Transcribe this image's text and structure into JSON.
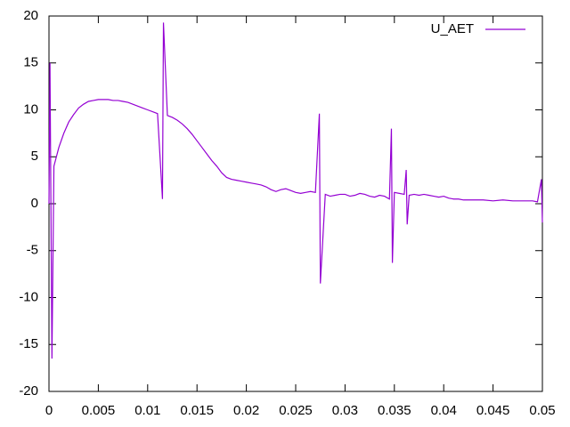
{
  "chart_data": {
    "type": "line",
    "x": [
      0,
      0.0001,
      0.0003,
      0.0005,
      0.001,
      0.0015,
      0.002,
      0.0025,
      0.003,
      0.0035,
      0.004,
      0.0045,
      0.005,
      0.0055,
      0.006,
      0.0065,
      0.007,
      0.0075,
      0.008,
      0.0085,
      0.009,
      0.0095,
      0.01,
      0.0105,
      0.011,
      0.0115,
      0.0116,
      0.012,
      0.0125,
      0.013,
      0.0135,
      0.014,
      0.0145,
      0.015,
      0.0155,
      0.016,
      0.0165,
      0.017,
      0.0175,
      0.018,
      0.0185,
      0.019,
      0.0195,
      0.02,
      0.0205,
      0.021,
      0.0215,
      0.022,
      0.0225,
      0.023,
      0.0235,
      0.024,
      0.0245,
      0.025,
      0.0255,
      0.026,
      0.0265,
      0.027,
      0.0274,
      0.0275,
      0.028,
      0.0285,
      0.029,
      0.0295,
      0.03,
      0.0305,
      0.031,
      0.0315,
      0.032,
      0.0325,
      0.033,
      0.0335,
      0.034,
      0.0345,
      0.0347,
      0.0348,
      0.035,
      0.0355,
      0.036,
      0.0362,
      0.0363,
      0.0365,
      0.037,
      0.0375,
      0.038,
      0.0385,
      0.039,
      0.0395,
      0.04,
      0.0405,
      0.041,
      0.0415,
      0.042,
      0.043,
      0.044,
      0.045,
      0.046,
      0.047,
      0.048,
      0.049,
      0.0495,
      0.0499,
      0.05
    ],
    "series": [
      {
        "name": "U_AET",
        "color": "#9400d3",
        "values": [
          0,
          15,
          -16.5,
          4,
          6,
          7.5,
          8.7,
          9.5,
          10.2,
          10.6,
          10.9,
          11,
          11.1,
          11.1,
          11.1,
          11,
          11,
          10.9,
          10.8,
          10.6,
          10.4,
          10.2,
          10,
          9.8,
          9.6,
          0.5,
          19.3,
          9.4,
          9.2,
          8.9,
          8.5,
          8,
          7.4,
          6.7,
          6,
          5.3,
          4.6,
          4,
          3.3,
          2.8,
          2.6,
          2.5,
          2.4,
          2.3,
          2.2,
          2.1,
          2,
          1.8,
          1.5,
          1.3,
          1.5,
          1.6,
          1.4,
          1.2,
          1.1,
          1.2,
          1.3,
          1.2,
          9.6,
          -8.5,
          1,
          0.8,
          0.9,
          1,
          1,
          0.8,
          0.9,
          1.1,
          1,
          0.8,
          0.7,
          0.9,
          0.8,
          0.5,
          8,
          -6.3,
          1.2,
          1.1,
          1,
          3.6,
          -2.2,
          0.9,
          1,
          0.9,
          1,
          0.9,
          0.8,
          0.7,
          0.8,
          0.6,
          0.5,
          0.5,
          0.4,
          0.4,
          0.4,
          0.3,
          0.4,
          0.3,
          0.3,
          0.3,
          0.2,
          2.6,
          -2
        ]
      }
    ],
    "xlim": [
      0,
      0.05
    ],
    "xticks": [
      0,
      0.005,
      0.01,
      0.015,
      0.02,
      0.025,
      0.03,
      0.035,
      0.04,
      0.045,
      0.05
    ],
    "ylim": [
      -20,
      20
    ],
    "yticks": [
      -20,
      -15,
      -10,
      -5,
      0,
      5,
      10,
      15,
      20
    ],
    "legend": "top-right"
  }
}
